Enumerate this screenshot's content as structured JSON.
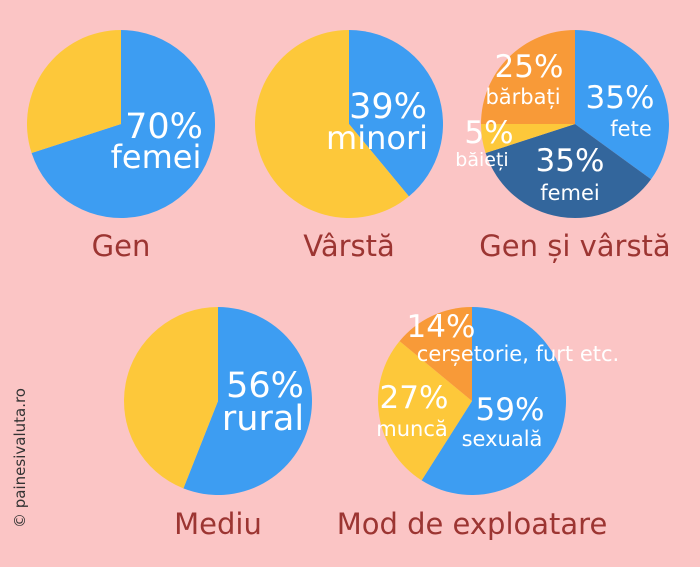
{
  "colors": {
    "background": "#FBC5C5",
    "yellow": "#FDC83A",
    "blue": "#3D9DF2",
    "darkblue": "#33669C",
    "orange": "#F89A38",
    "caption": "#9C3532",
    "label": "#FFFFFF"
  },
  "copyright": "© painesivaluta.ro",
  "chart_data": [
    {
      "type": "pie",
      "title": "Gen",
      "slices": [
        {
          "percent": "70%",
          "label": "femei",
          "value": 70,
          "color": "#3D9DF2"
        },
        {
          "percent": "",
          "label": "",
          "value": 30,
          "color": "#FDC83A"
        }
      ]
    },
    {
      "type": "pie",
      "title": "Vârstă",
      "slices": [
        {
          "percent": "39%",
          "label": "minori",
          "value": 39,
          "color": "#3D9DF2"
        },
        {
          "percent": "",
          "label": "",
          "value": 61,
          "color": "#FDC83A"
        }
      ]
    },
    {
      "type": "pie",
      "title": "Gen și vârstă",
      "slices": [
        {
          "percent": "35%",
          "label": "fete",
          "value": 35,
          "color": "#3D9DF2"
        },
        {
          "percent": "35%",
          "label": "femei",
          "value": 35,
          "color": "#33669C"
        },
        {
          "percent": "5%",
          "label": "băieți",
          "value": 5,
          "color": "#FDC83A"
        },
        {
          "percent": "25%",
          "label": "bărbați",
          "value": 25,
          "color": "#F89A38"
        }
      ]
    },
    {
      "type": "pie",
      "title": "Mediu",
      "slices": [
        {
          "percent": "56%",
          "label": "rural",
          "value": 56,
          "color": "#3D9DF2"
        },
        {
          "percent": "",
          "label": "",
          "value": 44,
          "color": "#FDC83A"
        }
      ]
    },
    {
      "type": "pie",
      "title": "Mod de exploatare",
      "slices": [
        {
          "percent": "59%",
          "label": "sexuală",
          "value": 59,
          "color": "#3D9DF2"
        },
        {
          "percent": "27%",
          "label": "muncă",
          "value": 27,
          "color": "#FDC83A"
        },
        {
          "percent": "14%",
          "label": "cerșetorie, furt etc.",
          "value": 14,
          "color": "#F89A38"
        }
      ]
    }
  ]
}
